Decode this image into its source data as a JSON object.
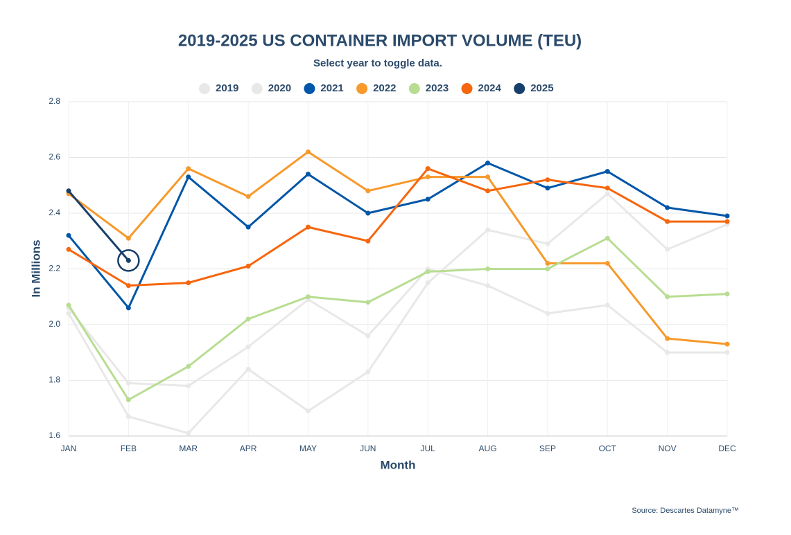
{
  "chart_data": {
    "type": "line",
    "title": "2019-2025 US CONTAINER IMPORT VOLUME (TEU)",
    "subtitle": "Select year to toggle data.",
    "x_label": "Month",
    "y_label": "In Millions",
    "source": "Source: Descartes Datamyne™",
    "categories": [
      "JAN",
      "FEB",
      "MAR",
      "APR",
      "MAY",
      "JUN",
      "JUL",
      "AUG",
      "SEP",
      "OCT",
      "NOV",
      "DEC"
    ],
    "ylim": [
      1.6,
      2.8
    ],
    "yticks": [
      1.6,
      1.8,
      {
        "value": 2,
        "label": "2.0"
      },
      2.2,
      2.4,
      2.6,
      2.8
    ],
    "grid": true,
    "series": [
      {
        "name": "2019",
        "color": "#e8e8e8",
        "values": [
          2.06,
          1.79,
          1.78,
          1.92,
          2.09,
          1.96,
          2.2,
          2.14,
          2.04,
          2.07,
          1.9,
          1.9
        ]
      },
      {
        "name": "2020",
        "color": "#e8e8e8",
        "values": [
          2.04,
          1.67,
          1.61,
          1.84,
          1.69,
          1.83,
          2.15,
          2.34,
          2.29,
          2.47,
          2.27,
          2.36
        ]
      },
      {
        "name": "2021",
        "color": "#0056a8",
        "values": [
          2.32,
          2.06,
          2.53,
          2.35,
          2.54,
          2.4,
          2.45,
          2.58,
          2.49,
          2.55,
          2.42,
          2.39
        ]
      },
      {
        "name": "2022",
        "color": "#f7992b",
        "values": [
          2.47,
          2.31,
          2.56,
          2.46,
          2.62,
          2.48,
          2.53,
          2.53,
          2.22,
          2.22,
          1.95,
          1.93
        ]
      },
      {
        "name": "2023",
        "color": "#b8dd92",
        "values": [
          2.07,
          1.73,
          1.85,
          2.02,
          2.1,
          2.08,
          2.19,
          2.2,
          2.2,
          2.31,
          2.1,
          2.11
        ]
      },
      {
        "name": "2024",
        "color": "#f6660e",
        "values": [
          2.27,
          2.14,
          2.15,
          2.21,
          2.35,
          2.3,
          2.56,
          2.48,
          2.52,
          2.49,
          2.37,
          2.37
        ]
      },
      {
        "name": "2025",
        "color": "#173f6b",
        "values": [
          2.48,
          2.23,
          null,
          null,
          null,
          null,
          null,
          null,
          null,
          null,
          null,
          null
        ]
      }
    ]
  }
}
